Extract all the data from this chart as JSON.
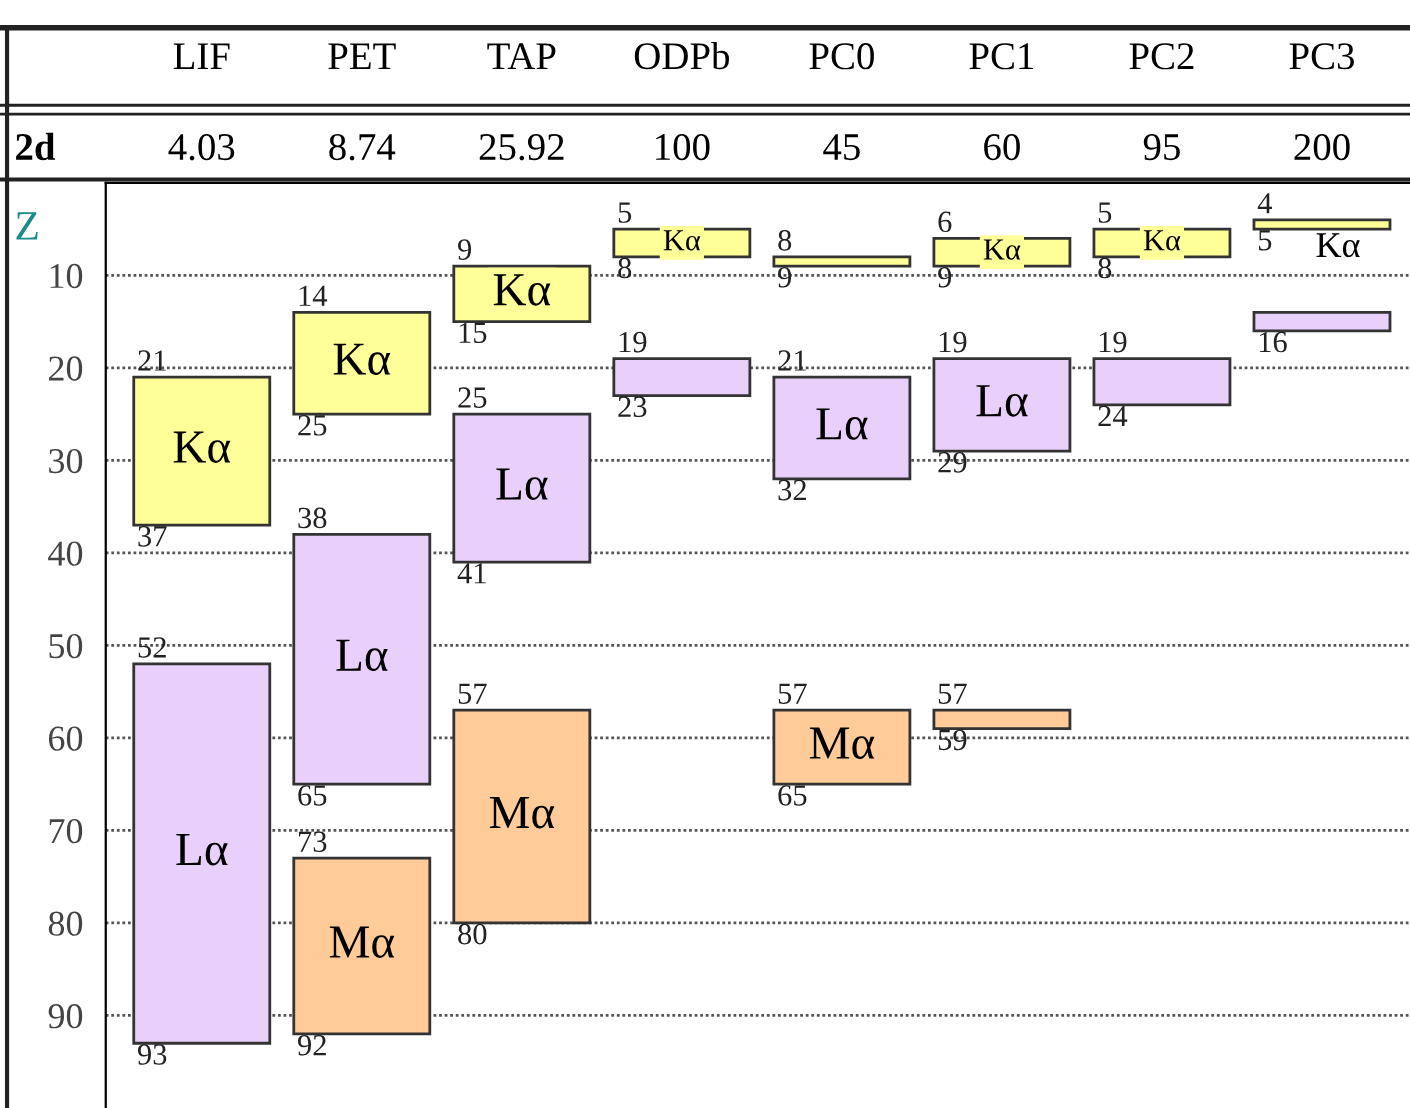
{
  "chart_data": {
    "type": "bar",
    "ylabel": "Z",
    "categories": [
      "LIF",
      "PET",
      "TAP",
      "ODPb",
      "PC0",
      "PC1",
      "PC2",
      "PC3"
    ],
    "series": [
      {
        "color": "#ffff99",
        "base": [
          21,
          14,
          9,
          5,
          8,
          6,
          5,
          4
        ],
        "values": [
          16,
          11,
          6,
          3,
          1,
          3,
          3,
          1
        ],
        "value_labels": [
          "Kα",
          "Kα",
          "Kα",
          "Kα",
          null,
          "Kα",
          "Kα",
          "Kα"
        ]
      },
      {
        "color": "#e8d0fa",
        "base": [
          52,
          38,
          25,
          19,
          21,
          19,
          19,
          14
        ],
        "values": [
          41,
          27,
          16,
          4,
          11,
          10,
          5,
          2
        ],
        "value_labels": [
          "Lα",
          "Lα",
          "Lα",
          null,
          "Lα",
          "Lα",
          null,
          null
        ]
      },
      {
        "color": "#ffcc99",
        "base": [
          null,
          73,
          57,
          null,
          57,
          57,
          null,
          null
        ],
        "values": [
          null,
          19,
          23,
          null,
          8,
          2,
          null,
          null
        ],
        "value_labels": [
          null,
          "Mα",
          "Mα",
          null,
          "Mα",
          null,
          null,
          null
        ]
      }
    ],
    "ylim": [
      100,
      0
    ],
    "yticks": [
      10,
      20,
      30,
      40,
      50,
      60,
      70,
      80,
      90
    ],
    "grid": "y",
    "annotations": [
      "2d",
      "4.03",
      "8.74",
      "25.92",
      "100",
      "45",
      "60",
      "95",
      "200",
      {
        "text": "21",
        "x": "LIF",
        "y": 21
      },
      {
        "text": "37",
        "x": "LIF",
        "y": 37
      },
      {
        "text": "52",
        "x": "LIF",
        "y": 52
      },
      {
        "text": "93",
        "x": "LIF",
        "y": 93
      },
      {
        "text": "14",
        "x": "PET",
        "y": 14
      },
      {
        "text": "25",
        "x": "PET",
        "y": 25
      },
      {
        "text": "38",
        "x": "PET",
        "y": 38
      },
      {
        "text": "65",
        "x": "PET",
        "y": 65
      },
      {
        "text": "73",
        "x": "PET",
        "y": 73
      },
      {
        "text": "92",
        "x": "PET",
        "y": 92
      },
      {
        "text": "9",
        "x": "TAP",
        "y": 9
      },
      {
        "text": "15",
        "x": "TAP",
        "y": 15
      },
      {
        "text": "25",
        "x": "TAP",
        "y": 25
      },
      {
        "text": "41",
        "x": "TAP",
        "y": 41
      },
      {
        "text": "57",
        "x": "TAP",
        "y": 57
      },
      {
        "text": "80",
        "x": "TAP",
        "y": 80
      },
      {
        "text": "5",
        "x": "ODPb",
        "y": 5
      },
      {
        "text": "8",
        "x": "ODPb",
        "y": 8
      },
      {
        "text": "19",
        "x": "ODPb",
        "y": 19
      },
      {
        "text": "23",
        "x": "ODPb",
        "y": 23
      },
      {
        "text": "8",
        "x": "PC0",
        "y": 8
      },
      {
        "text": "9",
        "x": "PC0",
        "y": 9
      },
      {
        "text": "21",
        "x": "PC0",
        "y": 21
      },
      {
        "text": "32",
        "x": "PC0",
        "y": 32
      },
      {
        "text": "57",
        "x": "PC0",
        "y": 57
      },
      {
        "text": "65",
        "x": "PC0",
        "y": 65
      },
      {
        "text": "6",
        "x": "PC1",
        "y": 6
      },
      {
        "text": "9",
        "x": "PC1",
        "y": 9
      },
      {
        "text": "19",
        "x": "PC1",
        "y": 19
      },
      {
        "text": "29",
        "x": "PC1",
        "y": 29
      },
      {
        "text": "57",
        "x": "PC1",
        "y": 57
      },
      {
        "text": "59",
        "x": "PC1",
        "y": 59
      },
      {
        "text": "5",
        "x": "PC2",
        "y": 5
      },
      {
        "text": "8",
        "x": "PC2",
        "y": 8
      },
      {
        "text": "19",
        "x": "PC2",
        "y": 19
      },
      {
        "text": "24",
        "x": "PC2",
        "y": 24
      },
      {
        "text": "4",
        "x": "PC3",
        "y": 4
      },
      {
        "text": "5",
        "x": "PC3",
        "y": 5
      },
      {
        "text": "16",
        "x": "PC3",
        "y": 16
      }
    ]
  }
}
